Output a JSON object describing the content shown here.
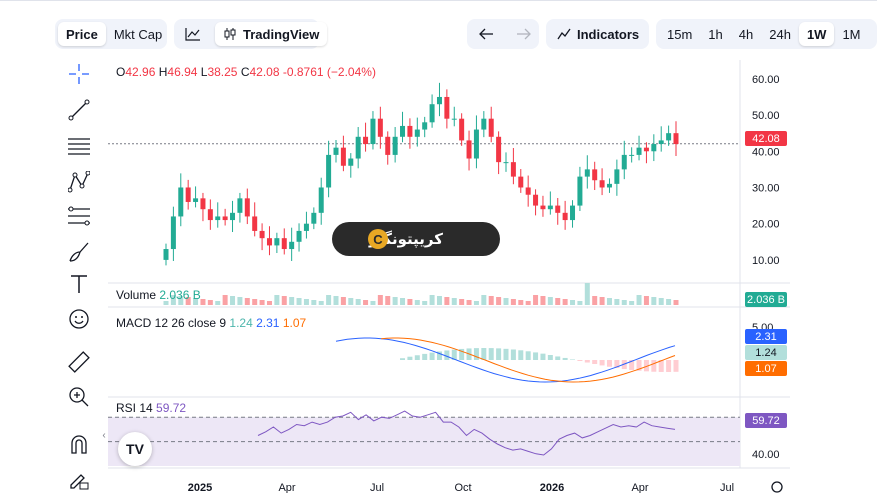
{
  "toolbar_top": {
    "price_tab": "Price",
    "mktcap_tab": "Mkt Cap",
    "tradingview_label": "TradingView",
    "indicators_label": "Indicators",
    "intervals": [
      "15m",
      "1h",
      "4h",
      "24h",
      "1W",
      "1M"
    ],
    "active_interval": "1W"
  },
  "ohlc": {
    "o_label": "O",
    "o": "42.96",
    "h_label": "H",
    "h": "46.94",
    "l_label": "L",
    "l": "38.25",
    "c_label": "C",
    "c": "42.08",
    "change": "-0.8761 (−2.04%)"
  },
  "volume_legend": {
    "label": "Volume",
    "value": "2.036 B"
  },
  "macd_legend": {
    "label": "MACD 12 26 close 9",
    "hist": "1.24",
    "macd": "2.31",
    "signal": "1.07"
  },
  "rsi_legend": {
    "label": "RSI 14",
    "value": "59.72"
  },
  "tags": {
    "price": "42.08",
    "volume": "2.036 B",
    "macd": "2.31",
    "hist": "1.24",
    "signal": "1.07",
    "rsi": "59.72"
  },
  "watermark": {
    "text": "کریپتونگار",
    "logo": "C"
  },
  "tv_logo": "TV",
  "colors": {
    "up": "#22ab94",
    "down": "#f23645",
    "up_soft": "#b2dfdb",
    "down_soft": "#faa1a4",
    "macd": "#2962ff",
    "signal": "#ff6d00",
    "rsi": "#7e57c2",
    "rsi_band": "#ede7f6"
  },
  "chart_data": [
    {
      "type": "candlestick",
      "title": "",
      "x_ticks": [
        "2025",
        "Apr",
        "Jul",
        "Oct",
        "2026",
        "Apr",
        "Jul"
      ],
      "y_ticks": [
        10,
        20,
        30,
        40,
        50,
        60
      ],
      "y_tick_labels": [
        "10.00",
        "20.00",
        "30.00",
        "40.00",
        "50.00",
        "60.00"
      ],
      "ylim": [
        5,
        63
      ],
      "last_price": 42.08,
      "close": [
        13,
        22,
        30,
        26,
        27,
        24,
        21,
        22,
        21,
        23,
        27,
        22,
        18,
        16,
        14,
        16,
        13,
        15,
        18,
        20,
        23,
        30,
        39,
        41,
        36,
        38,
        44,
        42,
        49,
        44,
        39,
        44,
        47,
        44,
        46,
        48,
        53,
        55,
        49,
        49,
        43,
        38,
        46,
        49,
        44,
        37,
        37,
        33,
        30,
        28,
        25,
        24,
        25,
        23,
        21,
        25,
        33,
        35,
        32,
        30,
        31,
        35,
        39,
        39,
        41,
        40,
        42,
        43,
        45,
        42
      ],
      "volume_note": "volume histogram bars under price, last value 2.036 B"
    },
    {
      "type": "line",
      "title": "MACD 12 26 close 9",
      "y_ticks": [
        5
      ],
      "series": [
        {
          "name": "MACD",
          "last": 2.31
        },
        {
          "name": "Signal",
          "last": 1.07
        },
        {
          "name": "Histogram",
          "last": 1.24
        }
      ]
    },
    {
      "type": "line",
      "title": "RSI 14",
      "y_ticks": [
        40
      ],
      "y_tick_labels": [
        "40.00"
      ],
      "band": [
        30,
        70
      ],
      "series": [
        {
          "name": "RSI",
          "values": [
            55,
            58,
            62,
            57,
            60,
            64,
            63,
            66,
            64,
            66,
            70,
            71,
            74,
            68,
            72,
            67,
            70,
            69,
            72,
            75,
            71,
            70,
            72,
            74,
            66,
            66,
            62,
            55,
            60,
            57,
            52,
            48,
            45,
            43,
            44,
            42,
            40,
            39,
            44,
            52,
            55,
            57,
            53,
            55,
            58,
            61,
            64,
            62,
            63,
            62,
            66,
            63,
            62,
            61,
            60
          ]
        }
      ]
    }
  ]
}
